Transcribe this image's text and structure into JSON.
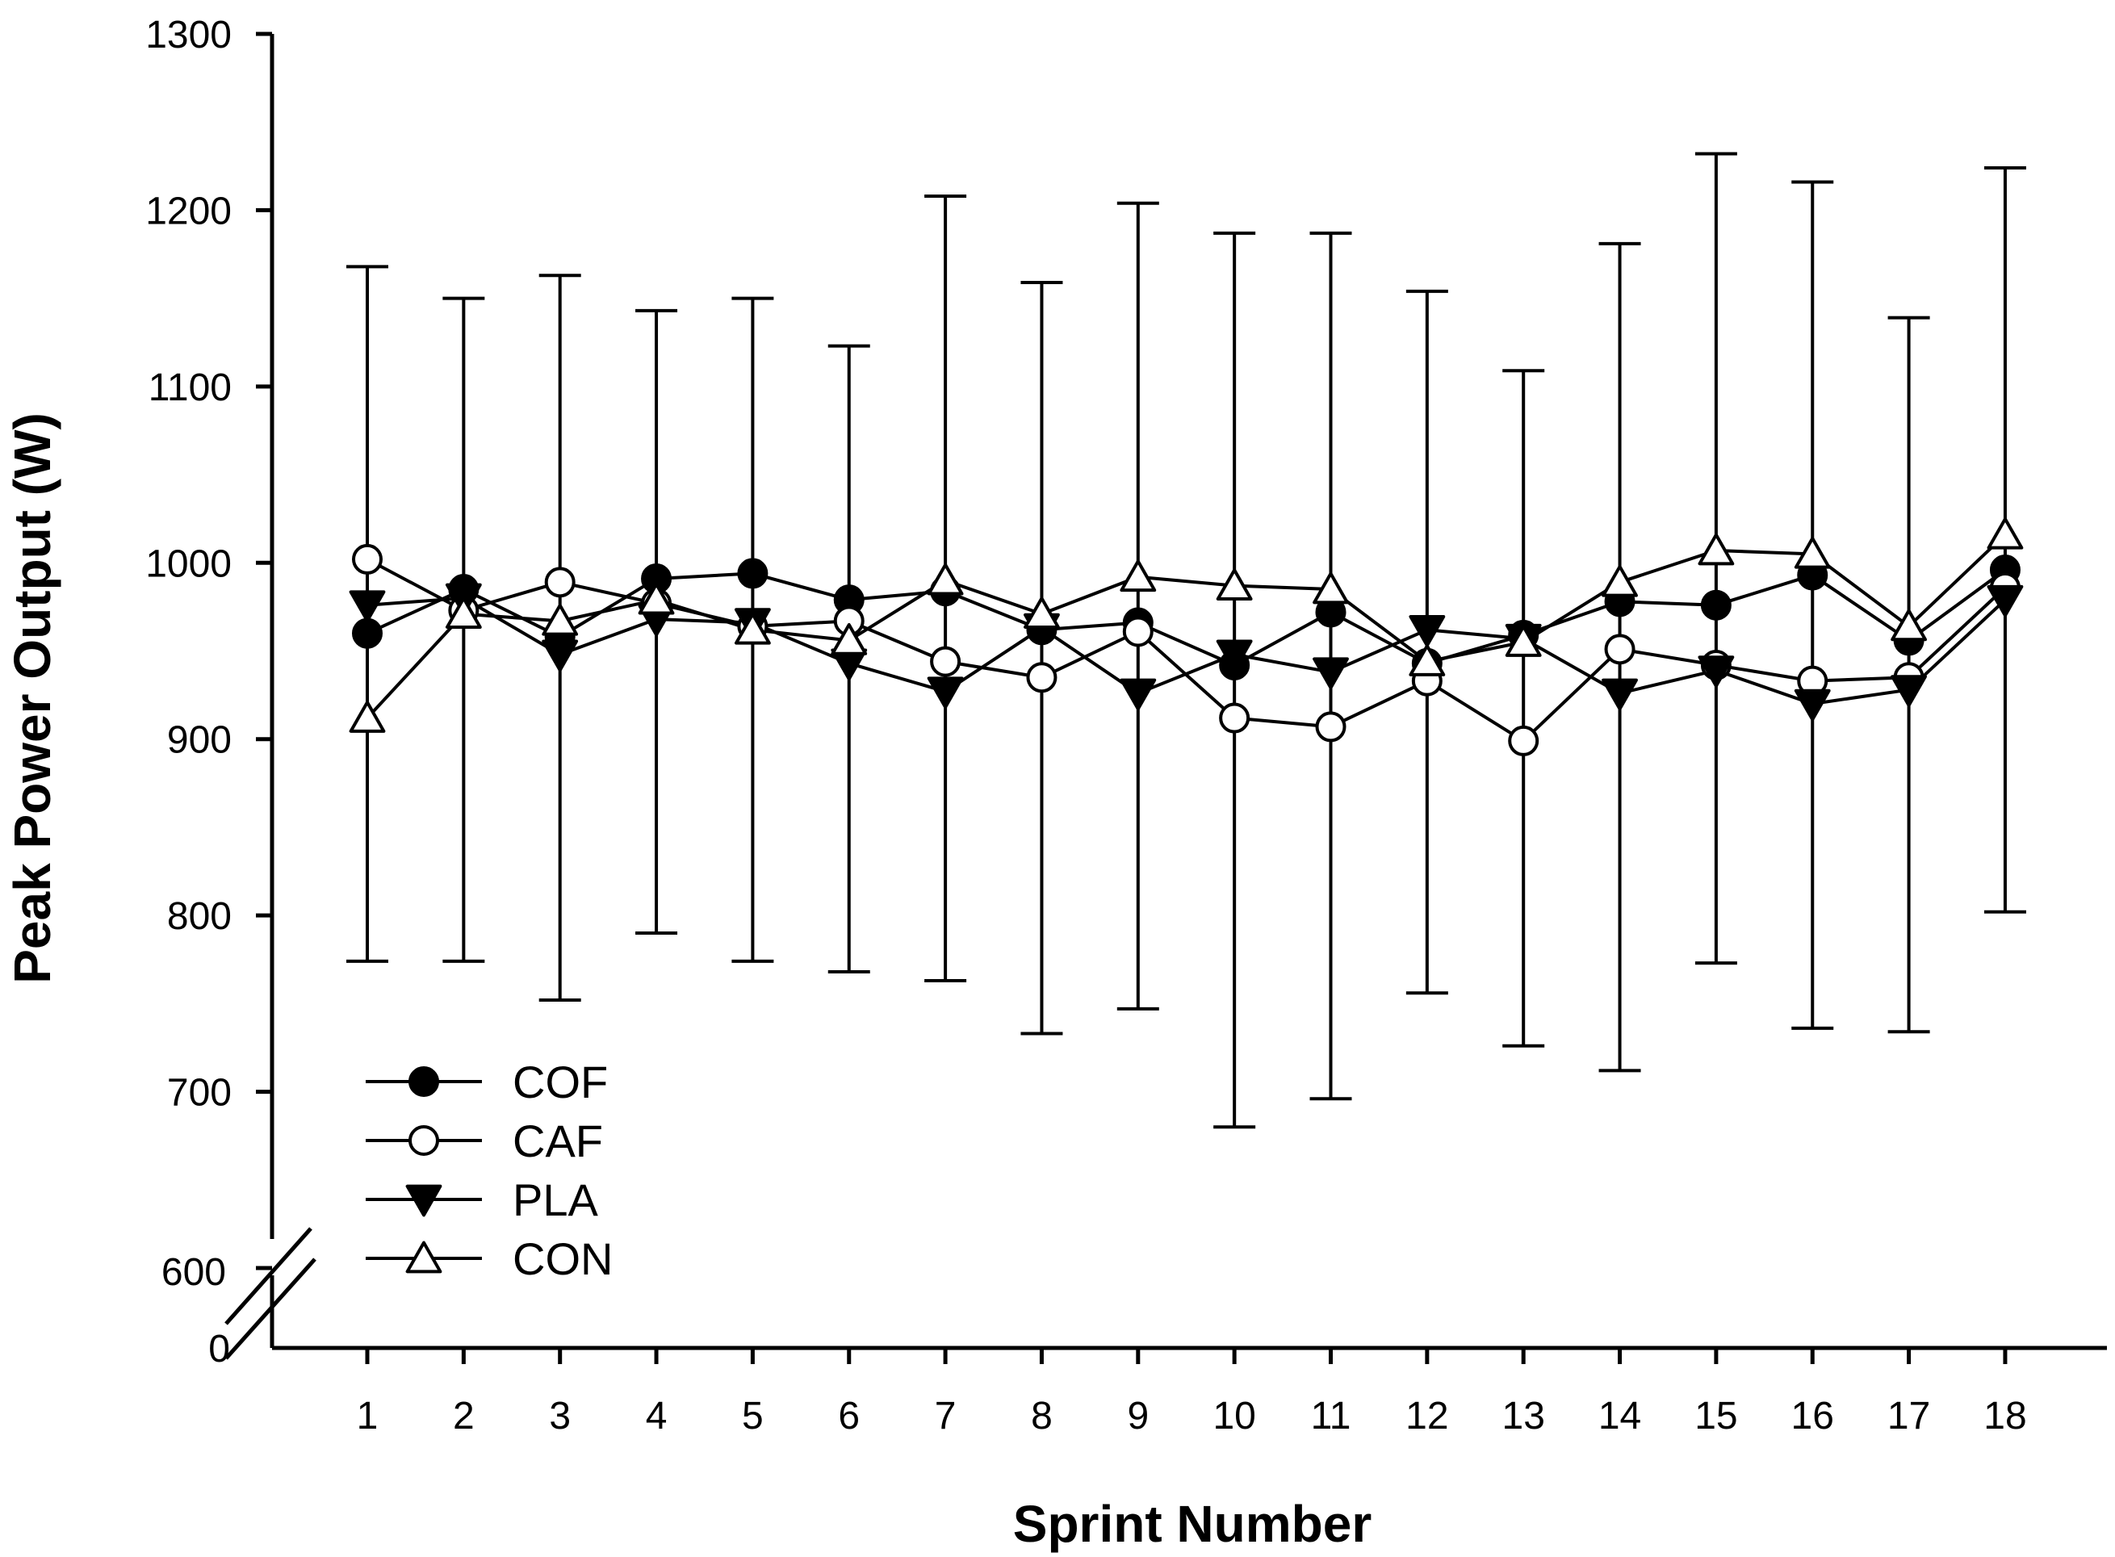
{
  "chart_data": {
    "type": "line",
    "title": "",
    "xlabel": "Sprint Number",
    "ylabel": "Peak Power Output (W)",
    "x": [
      1,
      2,
      3,
      4,
      5,
      6,
      7,
      8,
      9,
      10,
      11,
      12,
      13,
      14,
      15,
      16,
      17,
      18
    ],
    "x_tick_labels": [
      "1",
      "2",
      "3",
      "4",
      "5",
      "6",
      "7",
      "8",
      "9",
      "10",
      "11",
      "12",
      "13",
      "14",
      "15",
      "16",
      "17",
      "18"
    ],
    "xlim": [
      0,
      19.05
    ],
    "ylim": [
      600,
      1300
    ],
    "y_ticks": [
      600,
      700,
      800,
      900,
      1000,
      1100,
      1200,
      1300
    ],
    "y_axis_break": true,
    "y_break_label": "0",
    "grid": false,
    "legend_position": "lower-left",
    "series": [
      {
        "name": "COF",
        "marker": "filled-circle",
        "values": [
          960,
          985,
          958,
          991,
          994,
          979,
          984,
          962,
          966,
          942,
          972,
          943,
          959,
          978,
          976,
          993,
          956,
          996
        ]
      },
      {
        "name": "CAF",
        "marker": "open-circle",
        "values": [
          1002,
          973,
          989,
          977,
          964,
          967,
          944,
          935,
          961,
          912,
          907,
          933,
          899,
          951,
          942,
          933,
          935,
          986
        ]
      },
      {
        "name": "PLA",
        "marker": "filled-triangle-down",
        "values": [
          976,
          980,
          948,
          968,
          966,
          943,
          927,
          963,
          926,
          948,
          938,
          962,
          957,
          926,
          939,
          920,
          928,
          979
        ]
      },
      {
        "name": "CON",
        "marker": "open-triangle-up",
        "values": [
          912,
          971,
          967,
          979,
          962,
          956,
          990,
          971,
          992,
          987,
          985,
          944,
          955,
          989,
          1007,
          1005,
          964,
          1016
        ]
      }
    ],
    "error_bars": {
      "upper": [
        1168,
        1150,
        1163,
        1143,
        1150,
        1123,
        1208,
        1159,
        1204,
        1187,
        1187,
        1154,
        1109,
        1181,
        1232,
        1216,
        1139,
        1224
      ],
      "lower": [
        774,
        774,
        752,
        790,
        774,
        768,
        763,
        733,
        747,
        680,
        696,
        756,
        726,
        712,
        773,
        736,
        734,
        802
      ]
    }
  }
}
